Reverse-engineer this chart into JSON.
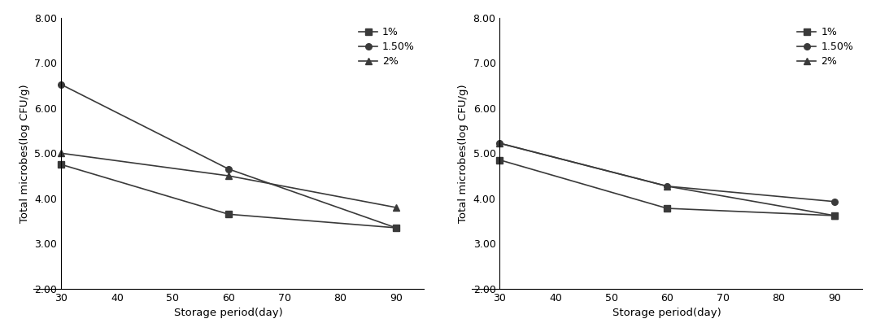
{
  "x": [
    30,
    60,
    90
  ],
  "chart1": {
    "series": [
      {
        "label": "1%",
        "marker": "s",
        "values": [
          4.75,
          3.65,
          3.35
        ]
      },
      {
        "label": "1.50%",
        "marker": "o",
        "values": [
          6.52,
          4.65,
          3.35
        ]
      },
      {
        "label": "2%",
        "marker": "^",
        "values": [
          5.0,
          4.5,
          3.8
        ]
      }
    ]
  },
  "chart2": {
    "series": [
      {
        "label": "1%",
        "marker": "s",
        "values": [
          4.85,
          3.78,
          3.62
        ]
      },
      {
        "label": "1.50%",
        "marker": "o",
        "values": [
          5.22,
          4.27,
          3.93
        ]
      },
      {
        "label": "2%",
        "marker": "^",
        "values": [
          5.22,
          4.27,
          3.62
        ]
      }
    ]
  },
  "ylim": [
    2.0,
    8.0
  ],
  "yticks": [
    2.0,
    3.0,
    4.0,
    5.0,
    6.0,
    7.0,
    8.0
  ],
  "xlim": [
    25,
    95
  ],
  "xticks": [
    30,
    40,
    50,
    60,
    70,
    80,
    90
  ],
  "xlabel": "Storage period(day)",
  "ylabel": "Total microbes(log CFU/g)",
  "line_color": "#3a3a3a",
  "legend_fontsize": 9,
  "axis_fontsize": 9.5,
  "tick_fontsize": 9
}
